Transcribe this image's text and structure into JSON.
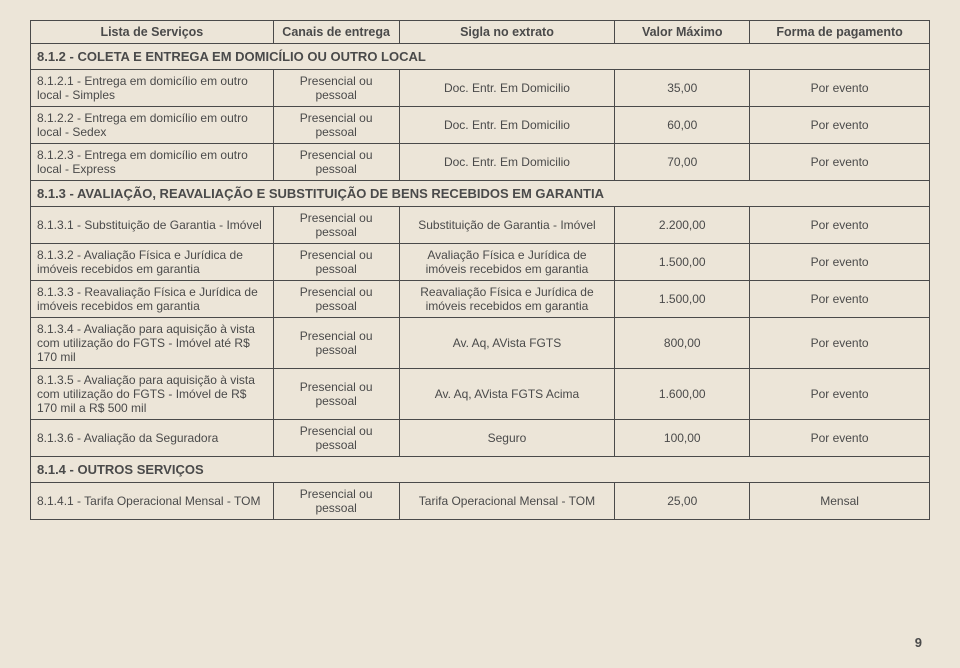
{
  "headers": {
    "c1": "Lista de Serviços",
    "c2": "Canais de entrega",
    "c3": "Sigla no extrato",
    "c4": "Valor Máximo",
    "c5": "Forma de pagamento"
  },
  "section_812": "8.1.2 - COLETA E ENTREGA EM DOMICÍLIO OU OUTRO LOCAL",
  "row_8121": {
    "desc": "8.1.2.1 - Entrega em domicílio em outro local - Simples",
    "canal": "Presencial ou pessoal",
    "sigla": "Doc. Entr. Em Domicilio",
    "valor": "35,00",
    "forma": "Por evento"
  },
  "row_8122": {
    "desc": "8.1.2.2 - Entrega em domicílio em outro local - Sedex",
    "canal": "Presencial ou pessoal",
    "sigla": "Doc. Entr. Em Domicilio",
    "valor": "60,00",
    "forma": "Por evento"
  },
  "row_8123": {
    "desc": "8.1.2.3 - Entrega em domicílio em outro local - Express",
    "canal": "Presencial ou pessoal",
    "sigla": "Doc. Entr. Em Domicilio",
    "valor": "70,00",
    "forma": "Por evento"
  },
  "section_813": "8.1.3 - AVALIAÇÃO, REAVALIAÇÃO E SUBSTITUIÇÃO DE BENS RECEBIDOS EM GARANTIA",
  "row_8131": {
    "desc": "8.1.3.1 - Substituição de Garantia - Imóvel",
    "canal": "Presencial ou pessoal",
    "sigla": "Substituição de Garantia - Imóvel",
    "valor": "2.200,00",
    "forma": "Por evento"
  },
  "row_8132": {
    "desc": "8.1.3.2 - Avaliação Física e Jurídica de imóveis recebidos em garantia",
    "canal": "Presencial ou pessoal",
    "sigla": "Avaliação Física e Jurídica de imóveis recebidos em garantia",
    "valor": "1.500,00",
    "forma": "Por evento"
  },
  "row_8133": {
    "desc": "8.1.3.3 - Reavaliação Física e Jurídica de imóveis recebidos em garantia",
    "canal": "Presencial ou pessoal",
    "sigla": "Reavaliação Física e Jurídica de imóveis recebidos em garantia",
    "valor": "1.500,00",
    "forma": "Por evento"
  },
  "row_8134": {
    "desc": "8.1.3.4 - Avaliação para aquisição à vista com utilização do FGTS - Imóvel até R$ 170 mil",
    "canal": "Presencial ou pessoal",
    "sigla": "Av. Aq, AVista FGTS",
    "valor": "800,00",
    "forma": "Por evento"
  },
  "row_8135": {
    "desc": "8.1.3.5 - Avaliação para aquisição à vista com utilização do FGTS - Imóvel de R$ 170 mil a R$ 500 mil",
    "canal": "Presencial ou pessoal",
    "sigla": "Av. Aq, AVista FGTS Acima",
    "valor": "1.600,00",
    "forma": "Por evento"
  },
  "row_8136": {
    "desc": "8.1.3.6 - Avaliação da Seguradora",
    "canal": "Presencial ou pessoal",
    "sigla": "Seguro",
    "valor": "100,00",
    "forma": "Por evento"
  },
  "section_814": "8.1.4 - OUTROS SERVIÇOS",
  "row_8141": {
    "desc": "8.1.4.1 - Tarifa Operacional Mensal - TOM",
    "canal": "Presencial ou pessoal",
    "sigla": "Tarifa Operacional Mensal - TOM",
    "valor": "25,00",
    "forma": "Mensal"
  },
  "page_number": "9"
}
